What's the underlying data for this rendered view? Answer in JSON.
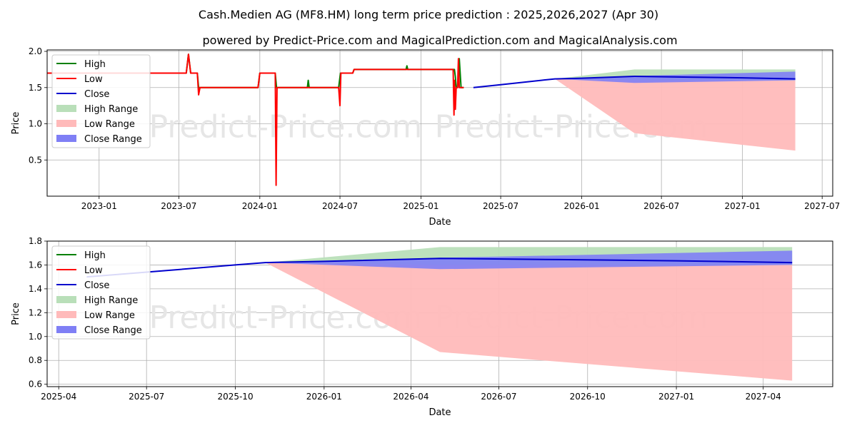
{
  "header": {
    "title": "Cash.Medien AG (MF8.HM) long term price prediction : 2025,2026,2027 (Apr 30)",
    "subtitle": "powered by Predict-Price.com and MagicalPrediction.com and MagicalAnalysis.com",
    "watermark": "Predict-Price.com"
  },
  "colors": {
    "high": "#008000",
    "low": "#ff0000",
    "close": "#0000cd",
    "high_range": "#b9dfb9",
    "low_range": "#ffbaba",
    "close_range": "#7f7ff5",
    "grid": "#b0b0b0"
  },
  "chart_data": [
    {
      "type": "line",
      "xlabel": "Date",
      "ylabel": "Price",
      "xlim": [
        "2022-09-05",
        "2027-07-25"
      ],
      "ylim": [
        0.0,
        2.02
      ],
      "x_ticks": [
        "2023-01",
        "2023-07",
        "2024-01",
        "2024-07",
        "2025-01",
        "2025-07",
        "2026-01",
        "2026-07",
        "2027-01",
        "2027-07"
      ],
      "y_ticks": [
        0.5,
        1.0,
        1.5,
        2.0
      ],
      "y_tick_labels": [
        "0.5",
        "1.0",
        "1.5",
        "2.0"
      ],
      "grid": true,
      "legend": "top-left",
      "series": [
        {
          "name": "High",
          "x": [
            "2022-09-05",
            "2023-07-18",
            "2023-07-23",
            "2023-07-28",
            "2023-08-12",
            "2023-08-15",
            "2023-12-28",
            "2024-01-01",
            "2024-02-05",
            "2024-02-08",
            "2024-04-18",
            "2024-04-20",
            "2024-04-22",
            "2024-06-28",
            "2024-07-02",
            "2024-07-30",
            "2024-08-02",
            "2024-11-28",
            "2024-11-30",
            "2024-12-02",
            "2025-03-18",
            "2025-03-20",
            "2025-03-22",
            "2025-03-25",
            "2025-03-29",
            "2025-04-02",
            "2025-04-08"
          ],
          "values": [
            1.7,
            1.7,
            1.96,
            1.7,
            1.7,
            1.5,
            1.5,
            1.7,
            1.7,
            1.5,
            1.5,
            1.6,
            1.5,
            1.5,
            1.7,
            1.7,
            1.75,
            1.75,
            1.8,
            1.75,
            1.75,
            1.65,
            1.5,
            1.5,
            1.9,
            1.5,
            1.5
          ]
        },
        {
          "name": "Low",
          "x": [
            "2022-09-05",
            "2023-07-18",
            "2023-07-23",
            "2023-07-28",
            "2023-08-12",
            "2023-08-15",
            "2023-08-18",
            "2023-12-28",
            "2024-01-01",
            "2024-02-05",
            "2024-02-07",
            "2024-02-09",
            "2024-06-28",
            "2024-07-01",
            "2024-07-03",
            "2024-07-30",
            "2024-08-02",
            "2025-03-15",
            "2025-03-17",
            "2025-03-18",
            "2025-03-20",
            "2025-03-22",
            "2025-03-25",
            "2025-03-27",
            "2025-03-29",
            "2025-04-02",
            "2025-04-08"
          ],
          "values": [
            1.7,
            1.7,
            1.96,
            1.7,
            1.7,
            1.4,
            1.5,
            1.5,
            1.7,
            1.7,
            0.15,
            1.5,
            1.5,
            1.25,
            1.7,
            1.7,
            1.75,
            1.75,
            1.12,
            1.6,
            1.2,
            1.5,
            1.5,
            1.9,
            1.5,
            1.5,
            1.5
          ]
        },
        {
          "name": "Close",
          "x": [
            "2025-04-30",
            "2025-07-01",
            "2025-10-01",
            "2025-11-01",
            "2026-01-01",
            "2026-05-01",
            "2026-09-01",
            "2027-01-01",
            "2027-05-01"
          ],
          "values": [
            1.5,
            1.54,
            1.6,
            1.62,
            1.63,
            1.655,
            1.645,
            1.635,
            1.62
          ]
        },
        {
          "name": "High Range",
          "x": [
            "2025-11-01",
            "2026-05-01",
            "2027-05-01"
          ],
          "upper": [
            1.62,
            1.75,
            1.75
          ],
          "lower": [
            1.62,
            1.6,
            1.6
          ]
        },
        {
          "name": "Low Range",
          "x": [
            "2025-11-01",
            "2026-05-01",
            "2027-05-01"
          ],
          "upper": [
            1.62,
            1.6,
            1.6
          ],
          "lower": [
            1.62,
            0.87,
            0.63
          ]
        },
        {
          "name": "Close Range",
          "x": [
            "2025-11-01",
            "2026-05-01",
            "2027-05-01"
          ],
          "upper": [
            1.62,
            1.66,
            1.72
          ],
          "lower": [
            1.62,
            1.565,
            1.6
          ]
        }
      ]
    },
    {
      "type": "line",
      "xlabel": "Date",
      "ylabel": "Price",
      "xlim": [
        "2025-03-20",
        "2027-06-12"
      ],
      "ylim": [
        0.58,
        1.8
      ],
      "x_ticks": [
        "2025-04",
        "2025-07",
        "2025-10",
        "2026-01",
        "2026-04",
        "2026-07",
        "2026-10",
        "2027-01",
        "2027-04"
      ],
      "y_ticks": [
        0.6,
        0.8,
        1.0,
        1.2,
        1.4,
        1.6,
        1.8
      ],
      "y_tick_labels": [
        "0.6",
        "0.8",
        "1.0",
        "1.2",
        "1.4",
        "1.6",
        "1.8"
      ],
      "grid": true,
      "legend": "top-left",
      "series": [
        {
          "name": "High",
          "x": [],
          "values": []
        },
        {
          "name": "Low",
          "x": [],
          "values": []
        },
        {
          "name": "Close",
          "x": [
            "2025-04-30",
            "2025-07-01",
            "2025-10-01",
            "2025-11-01",
            "2026-01-01",
            "2026-05-01",
            "2026-09-01",
            "2027-01-01",
            "2027-05-01"
          ],
          "values": [
            1.5,
            1.54,
            1.6,
            1.62,
            1.63,
            1.655,
            1.645,
            1.635,
            1.62
          ]
        },
        {
          "name": "High Range",
          "x": [
            "2025-11-01",
            "2026-05-01",
            "2027-05-01"
          ],
          "upper": [
            1.62,
            1.75,
            1.75
          ],
          "lower": [
            1.62,
            1.6,
            1.6
          ]
        },
        {
          "name": "Low Range",
          "x": [
            "2025-11-01",
            "2026-05-01",
            "2027-05-01"
          ],
          "upper": [
            1.62,
            1.6,
            1.6
          ],
          "lower": [
            1.62,
            0.87,
            0.63
          ]
        },
        {
          "name": "Close Range",
          "x": [
            "2025-11-01",
            "2026-05-01",
            "2027-05-01"
          ],
          "upper": [
            1.62,
            1.66,
            1.72
          ],
          "lower": [
            1.62,
            1.565,
            1.6
          ]
        }
      ]
    }
  ]
}
